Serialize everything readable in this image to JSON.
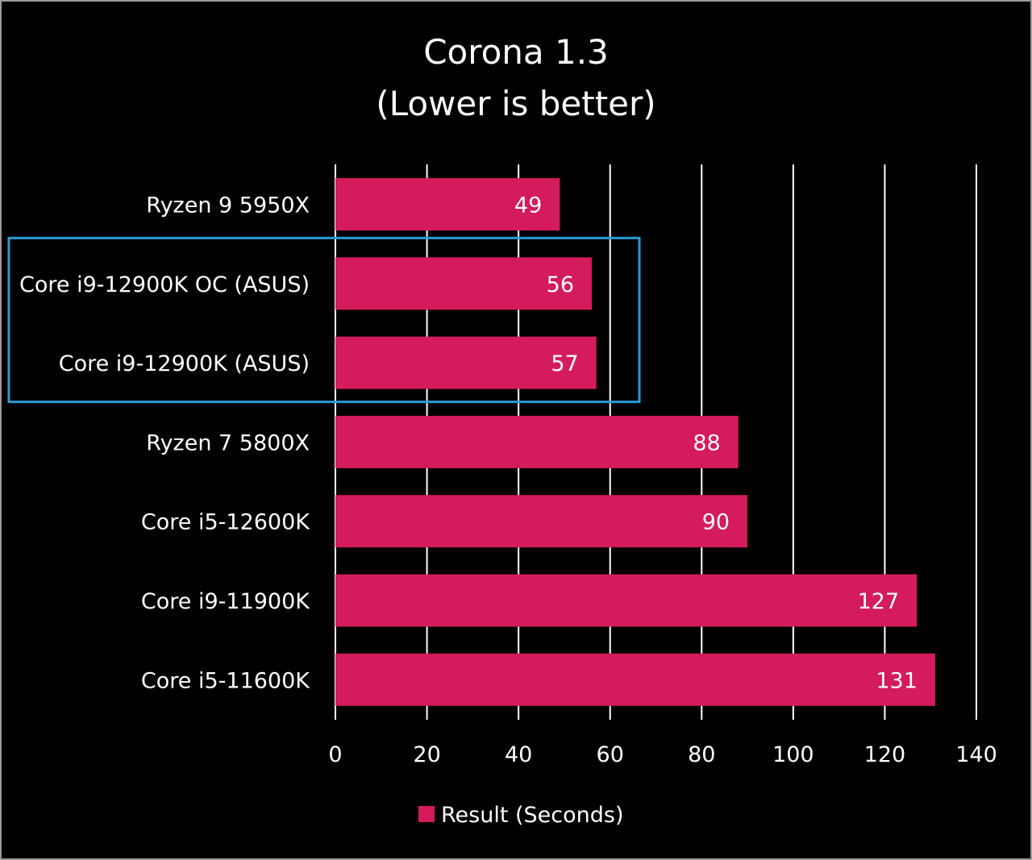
{
  "colors": {
    "background": "#000000",
    "bar": "#d41b5d",
    "grid": "#ffffff",
    "text": "#ffffff",
    "highlight_box": "#2a9ad6",
    "frame": "#9a9a9a"
  },
  "chart_data": {
    "type": "bar",
    "orientation": "horizontal",
    "title": [
      "Corona 1.3",
      "(Lower is better)"
    ],
    "categories": [
      "Ryzen 9 5950X",
      "Core i9-12900K OC (ASUS)",
      "Core i9-12900K (ASUS)",
      "Ryzen 7 5800X",
      "Core i5-12600K",
      "Core i9-11900K",
      "Core i5-11600K"
    ],
    "series": [
      {
        "name": "Result (Seconds)",
        "values": [
          49,
          56,
          57,
          88,
          90,
          127,
          131
        ]
      }
    ],
    "xlim": [
      0,
      140
    ],
    "xticks": [
      0,
      20,
      40,
      60,
      80,
      100,
      120,
      140
    ],
    "grid": "vertical",
    "legend": "bottom-center",
    "data_labels": "inside-end",
    "highlighted_categories": [
      "Core i9-12900K OC (ASUS)",
      "Core i9-12900K (ASUS)"
    ]
  }
}
